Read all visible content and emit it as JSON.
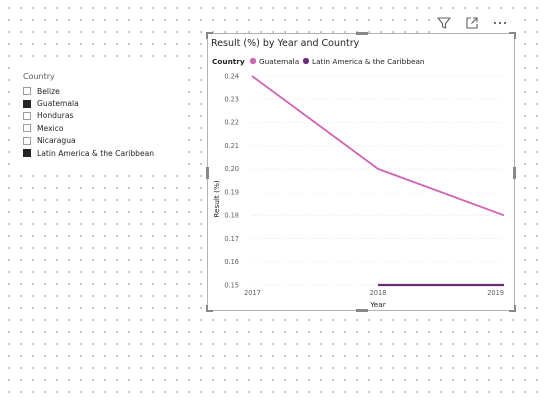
{
  "slicer": {
    "title": "Country",
    "items": [
      {
        "label": "Belize",
        "checked": false
      },
      {
        "label": "Guatemala",
        "checked": true
      },
      {
        "label": "Honduras",
        "checked": false
      },
      {
        "label": "Mexico",
        "checked": false
      },
      {
        "label": "Nicaragua",
        "checked": false
      },
      {
        "label": "Latin America & the Caribbean",
        "checked": true
      }
    ]
  },
  "toolbar": {
    "icons": [
      "filter-icon",
      "focus-mode-icon",
      "more-options-icon"
    ]
  },
  "chart_data": {
    "type": "line",
    "title": "Result (%) by Year and Country",
    "legend_title": "Country",
    "legend_position": "top-left",
    "xlabel": "Year",
    "ylabel": "Result (%)",
    "x": [
      "2017",
      "2018",
      "2019"
    ],
    "ylim": [
      0.15,
      0.24
    ],
    "yticks": [
      "0.24",
      "0.23",
      "0.22",
      "0.21",
      "0.20",
      "0.19",
      "0.18",
      "0.17",
      "0.16",
      "0.15"
    ],
    "grid": true,
    "series": [
      {
        "name": "Guatemala",
        "color": "#d162b5",
        "values": [
          0.24,
          0.2,
          0.18
        ]
      },
      {
        "name": "Latin America & the Caribbean",
        "color": "#6b2d7b",
        "values": [
          null,
          0.15,
          0.15
        ]
      }
    ]
  }
}
